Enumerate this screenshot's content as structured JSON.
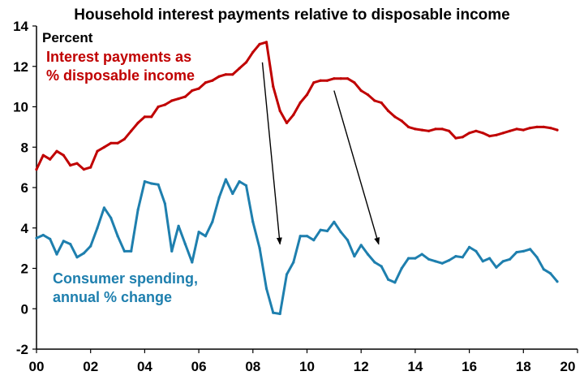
{
  "chart_data": {
    "type": "line",
    "title": "Household interest payments relative to disposable income",
    "unit_label": "Percent",
    "xlabel": "",
    "ylabel": "",
    "xlim": [
      2000,
      2020
    ],
    "ylim": [
      -2,
      14
    ],
    "x_ticks": [
      2000,
      2002,
      2004,
      2006,
      2008,
      2010,
      2012,
      2014,
      2016,
      2018,
      2020
    ],
    "x_tick_labels": [
      "00",
      "02",
      "04",
      "06",
      "08",
      "10",
      "12",
      "14",
      "16",
      "18",
      "20"
    ],
    "y_ticks": [
      -2,
      0,
      2,
      4,
      6,
      8,
      10,
      12,
      14
    ],
    "y_tick_labels": [
      "-2",
      "0",
      "2",
      "4",
      "6",
      "8",
      "10",
      "12",
      "14"
    ],
    "grid": false,
    "legend": "none",
    "series": [
      {
        "name": "Interest payments as % disposable income",
        "label_lines": [
          "Interest payments as",
          "% disposable income"
        ],
        "color": "#c00000",
        "x": [
          2000.0,
          2000.25,
          2000.5,
          2000.75,
          2001.0,
          2001.25,
          2001.5,
          2001.75,
          2002.0,
          2002.25,
          2002.5,
          2002.75,
          2003.0,
          2003.25,
          2003.5,
          2003.75,
          2004.0,
          2004.25,
          2004.5,
          2004.75,
          2005.0,
          2005.25,
          2005.5,
          2005.75,
          2006.0,
          2006.25,
          2006.5,
          2006.75,
          2007.0,
          2007.25,
          2007.5,
          2007.75,
          2008.0,
          2008.25,
          2008.5,
          2008.75,
          2009.0,
          2009.25,
          2009.5,
          2009.75,
          2010.0,
          2010.25,
          2010.5,
          2010.75,
          2011.0,
          2011.25,
          2011.5,
          2011.75,
          2012.0,
          2012.25,
          2012.5,
          2012.75,
          2013.0,
          2013.25,
          2013.5,
          2013.75,
          2014.0,
          2014.25,
          2014.5,
          2014.75,
          2015.0,
          2015.25,
          2015.5,
          2015.75,
          2016.0,
          2016.25,
          2016.5,
          2016.75,
          2017.0,
          2017.25,
          2017.5,
          2017.75,
          2018.0,
          2018.25,
          2018.5,
          2018.75,
          2019.0,
          2019.25
        ],
        "values": [
          6.9,
          7.6,
          7.4,
          7.8,
          7.6,
          7.1,
          7.2,
          6.9,
          7.0,
          7.8,
          8.0,
          8.2,
          8.2,
          8.4,
          8.8,
          9.2,
          9.5,
          9.5,
          10.0,
          10.1,
          10.3,
          10.4,
          10.5,
          10.8,
          10.9,
          11.2,
          11.3,
          11.5,
          11.6,
          11.6,
          11.9,
          12.2,
          12.7,
          13.1,
          13.2,
          11.0,
          9.8,
          9.2,
          9.6,
          10.2,
          10.6,
          11.2,
          11.3,
          11.3,
          11.4,
          11.4,
          11.4,
          11.2,
          10.8,
          10.6,
          10.3,
          10.2,
          9.8,
          9.5,
          9.3,
          9.0,
          8.9,
          8.85,
          8.8,
          8.9,
          8.9,
          8.8,
          8.45,
          8.5,
          8.7,
          8.8,
          8.7,
          8.55,
          8.6,
          8.7,
          8.8,
          8.9,
          8.85,
          8.95,
          9.0,
          9.0,
          8.95,
          8.85
        ]
      },
      {
        "name": "Consumer spending, annual % change",
        "label_lines": [
          "Consumer spending,",
          "annual % change"
        ],
        "color": "#1e7fae",
        "x": [
          2000.0,
          2000.25,
          2000.5,
          2000.75,
          2001.0,
          2001.25,
          2001.5,
          2001.75,
          2002.0,
          2002.25,
          2002.5,
          2002.75,
          2003.0,
          2003.25,
          2003.5,
          2003.75,
          2004.0,
          2004.25,
          2004.5,
          2004.75,
          2005.0,
          2005.25,
          2005.5,
          2005.75,
          2006.0,
          2006.25,
          2006.5,
          2006.75,
          2007.0,
          2007.25,
          2007.5,
          2007.75,
          2008.0,
          2008.25,
          2008.5,
          2008.75,
          2009.0,
          2009.25,
          2009.5,
          2009.75,
          2010.0,
          2010.25,
          2010.5,
          2010.75,
          2011.0,
          2011.25,
          2011.5,
          2011.75,
          2012.0,
          2012.25,
          2012.5,
          2012.75,
          2013.0,
          2013.25,
          2013.5,
          2013.75,
          2014.0,
          2014.25,
          2014.5,
          2014.75,
          2015.0,
          2015.25,
          2015.5,
          2015.75,
          2016.0,
          2016.25,
          2016.5,
          2016.75,
          2017.0,
          2017.25,
          2017.5,
          2017.75,
          2018.0,
          2018.25,
          2018.5,
          2018.75,
          2019.0,
          2019.25
        ],
        "values": [
          3.5,
          3.65,
          3.45,
          2.7,
          3.35,
          3.2,
          2.55,
          2.75,
          3.1,
          4.0,
          5.0,
          4.5,
          3.6,
          2.85,
          2.85,
          4.9,
          6.3,
          6.2,
          6.15,
          5.2,
          2.85,
          4.1,
          3.2,
          2.3,
          3.8,
          3.6,
          4.3,
          5.5,
          6.4,
          5.7,
          6.3,
          6.1,
          4.3,
          3.0,
          1.0,
          -0.2,
          -0.25,
          1.7,
          2.3,
          3.6,
          3.6,
          3.4,
          3.9,
          3.85,
          4.3,
          3.8,
          3.4,
          2.6,
          3.15,
          2.7,
          2.3,
          2.1,
          1.45,
          1.3,
          2.0,
          2.5,
          2.5,
          2.7,
          2.45,
          2.35,
          2.25,
          2.4,
          2.6,
          2.55,
          3.05,
          2.85,
          2.35,
          2.5,
          2.05,
          2.35,
          2.45,
          2.8,
          2.85,
          2.95,
          2.55,
          1.95,
          1.75,
          1.35
        ]
      }
    ],
    "annotations": [
      {
        "type": "arrow",
        "from": [
          2008.35,
          12.2
        ],
        "to": [
          2009.0,
          3.2
        ]
      },
      {
        "type": "arrow",
        "from": [
          2011.0,
          10.8
        ],
        "to": [
          2012.65,
          3.2
        ]
      }
    ]
  }
}
